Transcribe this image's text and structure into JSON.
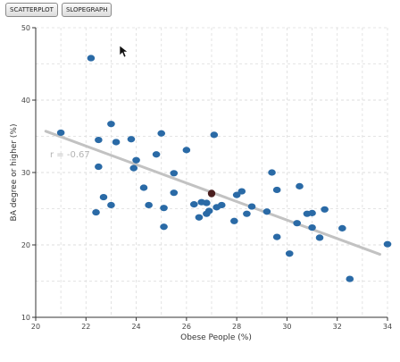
{
  "toolbar": {
    "scatterplot_label": "SCATTERPLOT",
    "slopegraph_label": "SLOPEGRAPH"
  },
  "chart_data": {
    "type": "scatter",
    "xlabel": "Obese People (%)",
    "ylabel": "BA degree or higher (%)",
    "xlim": [
      20,
      34
    ],
    "ylim": [
      10,
      50
    ],
    "xticks": [
      20,
      22,
      24,
      26,
      28,
      30,
      32,
      34
    ],
    "yticks": [
      10,
      20,
      30,
      40,
      50
    ],
    "grid": true,
    "annotation": "r = -0.67",
    "trendline": {
      "x": [
        20.4,
        33.7
      ],
      "y": [
        35.7,
        18.7
      ]
    },
    "colors": {
      "points": "#2a6aa6",
      "highlight": "#4a1f1f",
      "trendline": "#c2c2c2",
      "grid": "#dcdcdc"
    },
    "highlight_point": {
      "x": 27.0,
      "y": 27.1
    },
    "points": [
      {
        "x": 21.0,
        "y": 35.5
      },
      {
        "x": 22.2,
        "y": 45.8
      },
      {
        "x": 22.4,
        "y": 24.5
      },
      {
        "x": 22.5,
        "y": 34.5
      },
      {
        "x": 22.5,
        "y": 30.8
      },
      {
        "x": 22.7,
        "y": 26.6
      },
      {
        "x": 23.0,
        "y": 36.7
      },
      {
        "x": 23.0,
        "y": 25.5
      },
      {
        "x": 23.2,
        "y": 34.2
      },
      {
        "x": 23.8,
        "y": 34.6
      },
      {
        "x": 23.9,
        "y": 30.6
      },
      {
        "x": 24.0,
        "y": 31.7
      },
      {
        "x": 24.3,
        "y": 27.9
      },
      {
        "x": 24.5,
        "y": 25.5
      },
      {
        "x": 24.8,
        "y": 32.5
      },
      {
        "x": 25.0,
        "y": 35.4
      },
      {
        "x": 25.1,
        "y": 22.5
      },
      {
        "x": 25.1,
        "y": 25.1
      },
      {
        "x": 25.5,
        "y": 29.9
      },
      {
        "x": 25.5,
        "y": 27.2
      },
      {
        "x": 26.0,
        "y": 33.1
      },
      {
        "x": 26.3,
        "y": 25.6
      },
      {
        "x": 26.5,
        "y": 23.8
      },
      {
        "x": 26.6,
        "y": 25.9
      },
      {
        "x": 26.8,
        "y": 24.3
      },
      {
        "x": 26.8,
        "y": 25.8
      },
      {
        "x": 26.9,
        "y": 24.7
      },
      {
        "x": 27.1,
        "y": 35.2
      },
      {
        "x": 27.2,
        "y": 25.2
      },
      {
        "x": 27.4,
        "y": 25.5
      },
      {
        "x": 27.9,
        "y": 23.3
      },
      {
        "x": 28.0,
        "y": 26.9
      },
      {
        "x": 28.2,
        "y": 27.4
      },
      {
        "x": 28.4,
        "y": 24.3
      },
      {
        "x": 28.6,
        "y": 25.3
      },
      {
        "x": 29.2,
        "y": 24.6
      },
      {
        "x": 29.4,
        "y": 30.0
      },
      {
        "x": 29.6,
        "y": 27.6
      },
      {
        "x": 29.6,
        "y": 21.1
      },
      {
        "x": 30.1,
        "y": 18.8
      },
      {
        "x": 30.4,
        "y": 23.0
      },
      {
        "x": 30.5,
        "y": 28.1
      },
      {
        "x": 30.8,
        "y": 24.3
      },
      {
        "x": 31.0,
        "y": 24.4
      },
      {
        "x": 31.0,
        "y": 22.4
      },
      {
        "x": 31.3,
        "y": 21.0
      },
      {
        "x": 31.5,
        "y": 24.9
      },
      {
        "x": 32.2,
        "y": 22.3
      },
      {
        "x": 32.5,
        "y": 15.3
      },
      {
        "x": 34.0,
        "y": 20.1
      }
    ]
  }
}
